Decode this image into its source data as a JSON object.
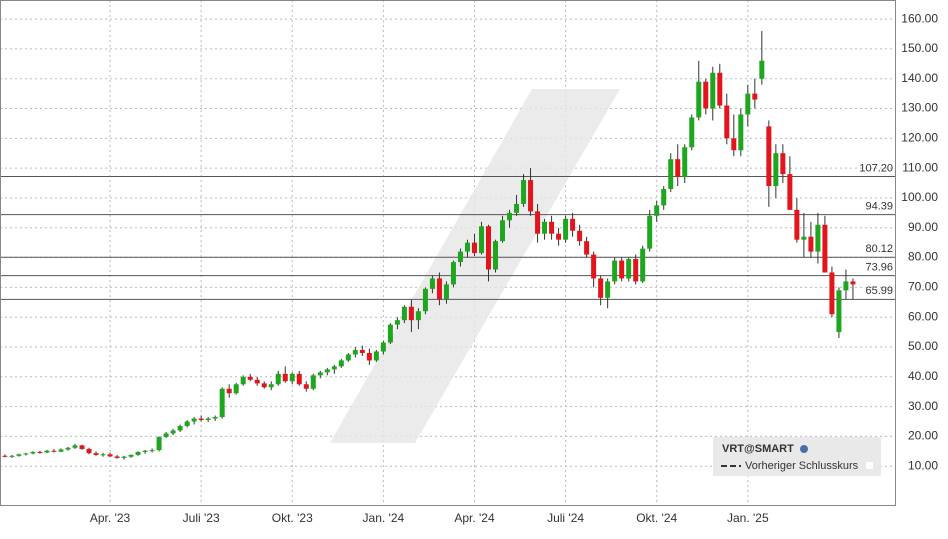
{
  "chart_data": {
    "type": "candlestick",
    "legend_title": "VRT@SMART",
    "legend_entry": "Vorheriger Schlusskurs",
    "up_color": "#1fa61f",
    "down_color": "#e3141c",
    "xlim": [
      -0.7,
      127
    ],
    "xticks": [
      {
        "value": 15,
        "label": "Apr. '23"
      },
      {
        "value": 28,
        "label": "Juli '23"
      },
      {
        "value": 41,
        "label": "Okt. '23"
      },
      {
        "value": 54,
        "label": "Jan. '24"
      },
      {
        "value": 67,
        "label": "Apr. '24"
      },
      {
        "value": 80,
        "label": "Juli '24"
      },
      {
        "value": 93,
        "label": "Okt. '24"
      },
      {
        "value": 106,
        "label": "Jan. '25"
      }
    ],
    "ylim": [
      -3,
      166.4
    ],
    "yticks": [
      {
        "value": 10,
        "label": "10.00"
      },
      {
        "value": 20,
        "label": "20.00"
      },
      {
        "value": 30,
        "label": "30.00"
      },
      {
        "value": 40,
        "label": "40.00"
      },
      {
        "value": 50,
        "label": "50.00"
      },
      {
        "value": 60,
        "label": "60.00"
      },
      {
        "value": 70,
        "label": "70.00"
      },
      {
        "value": 80,
        "label": "80.00"
      },
      {
        "value": 90,
        "label": "90.00"
      },
      {
        "value": 100,
        "label": "100.00"
      },
      {
        "value": 110,
        "label": "110.00"
      },
      {
        "value": 120,
        "label": "120.00"
      },
      {
        "value": 130,
        "label": "130.00"
      },
      {
        "value": 140,
        "label": "140.00"
      },
      {
        "value": 150,
        "label": "150.00"
      },
      {
        "value": 160,
        "label": "160.00"
      }
    ],
    "grid": true,
    "reference_lines": [
      {
        "value": 107.2,
        "label": "107.20"
      },
      {
        "value": 94.39,
        "label": "94.39"
      },
      {
        "value": 80.12,
        "label": "80.12"
      },
      {
        "value": 73.96,
        "label": "73.96"
      },
      {
        "value": 65.99,
        "label": "65.99"
      }
    ],
    "ohlc": [
      [
        13.5,
        14,
        13,
        13.2
      ],
      [
        13.2,
        13.8,
        12.8,
        13.5
      ],
      [
        13.5,
        14.2,
        13.2,
        14
      ],
      [
        14,
        14.5,
        13.6,
        14.3
      ],
      [
        14.3,
        15,
        14,
        14.8
      ],
      [
        14.8,
        15.2,
        14.2,
        14.6
      ],
      [
        14.6,
        15.5,
        14.4,
        15.2
      ],
      [
        15.2,
        15.8,
        14.6,
        14.9
      ],
      [
        14.9,
        16,
        14.7,
        15.6
      ],
      [
        15.6,
        16.5,
        15.2,
        16.2
      ],
      [
        16.2,
        17.5,
        15.8,
        17
      ],
      [
        17,
        17.2,
        15.5,
        15.8
      ],
      [
        15.8,
        16.2,
        14,
        14.4
      ],
      [
        14.4,
        15,
        13.5,
        13.8
      ],
      [
        13.8,
        14.5,
        13.2,
        14
      ],
      [
        14,
        14.6,
        13,
        13.3
      ],
      [
        13.3,
        13.8,
        12.5,
        12.8
      ],
      [
        12.8,
        13.5,
        12.2,
        13.2
      ],
      [
        13.2,
        14,
        12.8,
        13.8
      ],
      [
        13.8,
        15,
        13.5,
        14.8
      ],
      [
        14.8,
        15.5,
        14.2,
        15.2
      ],
      [
        15.2,
        16,
        14.6,
        15.4
      ],
      [
        15.4,
        20,
        15,
        19.8
      ],
      [
        19.8,
        21.5,
        19.5,
        21
      ],
      [
        21,
        22.5,
        20.5,
        22
      ],
      [
        22,
        24,
        21.5,
        23.5
      ],
      [
        23.5,
        25.5,
        23,
        25
      ],
      [
        25,
        26.5,
        24,
        26
      ],
      [
        26,
        27,
        25,
        25.5
      ],
      [
        25.5,
        26.5,
        24.8,
        26
      ],
      [
        26,
        27,
        25.2,
        26.5
      ],
      [
        26.5,
        36.5,
        26,
        36
      ],
      [
        36,
        37.5,
        33,
        34.5
      ],
      [
        34.5,
        38,
        34,
        37.5
      ],
      [
        37.5,
        40.5,
        37,
        40
      ],
      [
        40,
        41,
        38.5,
        39
      ],
      [
        39,
        40,
        37,
        37.8
      ],
      [
        37.8,
        38.5,
        36,
        36.5
      ],
      [
        36.5,
        38.5,
        35.5,
        37.5
      ],
      [
        37.5,
        42,
        37,
        41
      ],
      [
        41,
        43.5,
        38,
        38.5
      ],
      [
        38.5,
        41.5,
        37.5,
        41
      ],
      [
        41,
        42,
        37,
        37.5
      ],
      [
        37.5,
        38.5,
        35,
        36
      ],
      [
        36,
        41,
        35.5,
        40.5
      ],
      [
        40.5,
        42,
        39.5,
        41.5
      ],
      [
        41.5,
        43,
        40.5,
        42.5
      ],
      [
        42.5,
        44,
        41,
        43.5
      ],
      [
        43.5,
        46,
        43,
        45.5
      ],
      [
        45.5,
        48,
        45,
        47.5
      ],
      [
        47.5,
        50,
        46.5,
        49
      ],
      [
        49,
        50.5,
        47,
        48
      ],
      [
        48,
        49.5,
        44,
        45.5
      ],
      [
        45.5,
        49,
        45,
        48.5
      ],
      [
        48.5,
        52,
        47.5,
        51.5
      ],
      [
        51.5,
        58,
        51,
        57.5
      ],
      [
        57.5,
        60,
        56,
        59
      ],
      [
        59,
        64,
        58,
        63.5
      ],
      [
        63.5,
        66,
        55,
        59
      ],
      [
        59,
        63,
        56,
        62
      ],
      [
        62,
        70,
        61,
        69.5
      ],
      [
        69.5,
        74,
        68,
        73
      ],
      [
        73,
        75,
        64,
        66
      ],
      [
        66,
        72,
        64.5,
        71
      ],
      [
        71,
        79,
        70,
        78.5
      ],
      [
        78.5,
        83,
        77,
        82
      ],
      [
        82,
        86,
        80,
        85
      ],
      [
        85,
        88,
        80.5,
        81.5
      ],
      [
        81.5,
        92,
        81,
        90.5
      ],
      [
        90.5,
        91,
        72,
        76
      ],
      [
        76,
        86,
        75,
        85.5
      ],
      [
        85.5,
        94,
        85,
        92.5
      ],
      [
        92.5,
        96,
        90,
        95
      ],
      [
        95,
        101,
        94,
        98
      ],
      [
        98,
        108,
        97,
        106
      ],
      [
        106,
        110,
        94,
        95.5
      ],
      [
        95.5,
        98,
        85,
        88
      ],
      [
        88,
        93,
        86,
        92
      ],
      [
        92,
        94,
        86,
        88
      ],
      [
        88,
        90,
        84,
        86
      ],
      [
        86,
        94,
        85,
        93
      ],
      [
        93,
        95,
        87,
        89
      ],
      [
        89,
        91,
        84,
        85.5
      ],
      [
        85.5,
        87,
        80,
        81
      ],
      [
        81,
        82,
        70,
        73
      ],
      [
        73,
        74,
        64,
        66.5
      ],
      [
        66.5,
        73,
        63,
        72
      ],
      [
        72,
        80,
        71,
        79
      ],
      [
        79,
        80,
        72,
        73
      ],
      [
        73,
        80,
        72,
        79.5
      ],
      [
        79.5,
        81,
        71,
        72
      ],
      [
        72,
        84,
        71.5,
        83
      ],
      [
        83,
        96,
        82,
        94
      ],
      [
        94,
        99,
        92,
        97.5
      ],
      [
        97.5,
        104,
        96,
        103
      ],
      [
        103,
        115,
        102,
        113
      ],
      [
        113,
        118,
        104,
        107
      ],
      [
        107,
        118,
        105,
        117
      ],
      [
        117,
        128,
        116,
        127
      ],
      [
        127,
        146,
        126,
        139
      ],
      [
        139,
        140,
        128,
        130
      ],
      [
        130,
        144,
        126,
        142
      ],
      [
        142,
        145,
        130,
        131
      ],
      [
        131,
        135,
        118,
        120
      ],
      [
        120,
        128,
        114,
        116
      ],
      [
        116,
        130,
        114,
        128
      ],
      [
        128,
        138,
        124,
        135
      ],
      [
        135,
        140,
        130,
        133
      ],
      [
        140,
        156,
        138,
        146
      ],
      [
        124,
        126,
        97,
        104
      ],
      [
        104,
        118,
        100,
        115
      ],
      [
        115,
        118,
        105,
        108
      ],
      [
        108,
        114,
        96,
        96
      ],
      [
        96,
        100,
        85,
        86
      ],
      [
        86,
        95,
        80,
        87
      ],
      [
        87,
        92,
        80,
        82
      ],
      [
        82,
        95,
        78,
        91
      ],
      [
        91,
        94,
        75,
        75
      ],
      [
        75,
        77,
        60,
        61
      ],
      [
        55,
        70,
        53,
        69
      ],
      [
        69,
        76,
        66,
        72
      ],
      [
        72,
        73,
        66,
        71
      ]
    ]
  }
}
